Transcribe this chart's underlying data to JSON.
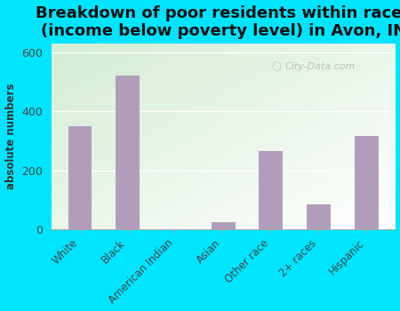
{
  "title": "Breakdown of poor residents within races\n(income below poverty level) in Avon, IN",
  "categories": [
    "White",
    "Black",
    "American Indian",
    "Asian",
    "Other race",
    "2+ races",
    "Hispanic"
  ],
  "values": [
    350,
    520,
    0,
    25,
    265,
    85,
    315
  ],
  "bar_color": "#b39dbd",
  "ylabel": "absolute numbers",
  "ylim": [
    0,
    630
  ],
  "yticks": [
    0,
    200,
    400,
    600
  ],
  "background_color": "#00e5ff",
  "title_fontsize": 13,
  "title_fontweight": "bold",
  "watermark": "City-Data.com"
}
